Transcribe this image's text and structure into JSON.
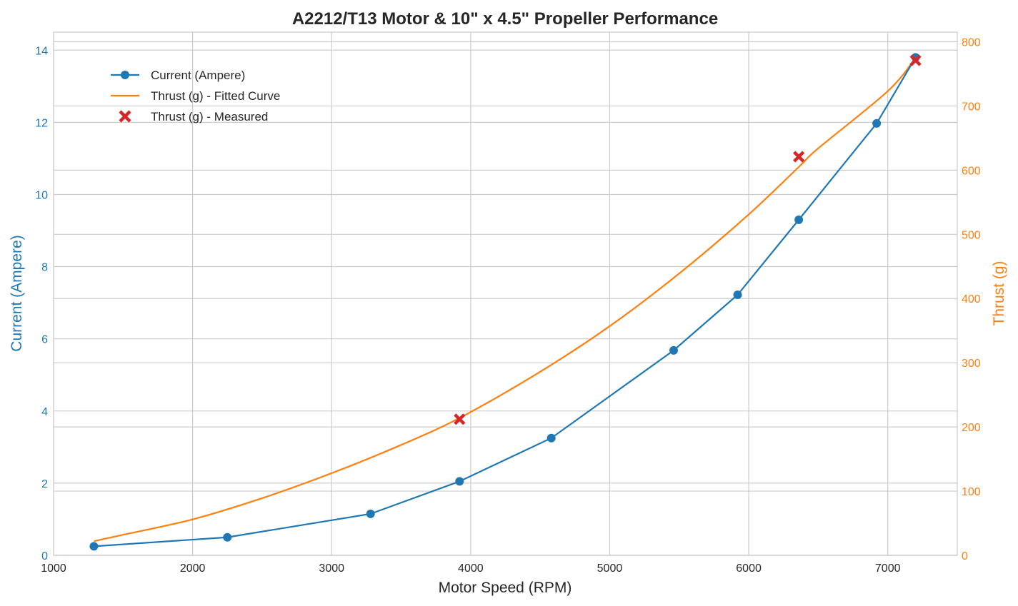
{
  "chart_data": {
    "type": "line",
    "title": "A2212/T13 Motor & 10\" x 4.5\" Propeller Performance",
    "xlabel": "Motor Speed (RPM)",
    "ylabel_left": "Current (Ampere)",
    "ylabel_right": "Thrust (g)",
    "xlim": [
      1000,
      7500
    ],
    "ylim_left": [
      0,
      14.5
    ],
    "ylim_right": [
      0,
      815
    ],
    "x_ticks": [
      1000,
      2000,
      3000,
      4000,
      5000,
      6000,
      7000
    ],
    "y_left_ticks": [
      0,
      2,
      4,
      6,
      8,
      10,
      12,
      14
    ],
    "y_right_ticks": [
      0,
      100,
      200,
      300,
      400,
      500,
      600,
      700,
      800
    ],
    "grid": true,
    "legend_position": "top-left",
    "series": [
      {
        "name": "Current (Ampere)",
        "axis": "left",
        "style": "line-marker",
        "color": "#1f77b4",
        "x": [
          1290,
          2250,
          3280,
          3920,
          4580,
          5460,
          5920,
          6360,
          6920,
          7200
        ],
        "y": [
          0.25,
          0.5,
          1.15,
          2.05,
          3.25,
          5.68,
          7.22,
          9.3,
          11.97,
          13.8
        ]
      },
      {
        "name": "Thrust (g) - Fitted Curve",
        "axis": "right",
        "style": "line",
        "color": "#ff7f0e",
        "x": [
          1290,
          1500,
          2000,
          2500,
          3000,
          3500,
          3920,
          4500,
          5000,
          5500,
          6000,
          6360,
          6500,
          7000,
          7200
        ],
        "y": [
          22,
          32,
          56,
          89,
          128,
          172,
          214,
          286,
          357,
          439,
          531,
          605,
          634,
          723,
          775
        ]
      },
      {
        "name": "Thrust (g) - Measured",
        "axis": "right",
        "style": "marker-x",
        "color": "#d62728",
        "x": [
          3920,
          6360,
          7200
        ],
        "y": [
          212,
          621,
          771
        ]
      }
    ]
  }
}
